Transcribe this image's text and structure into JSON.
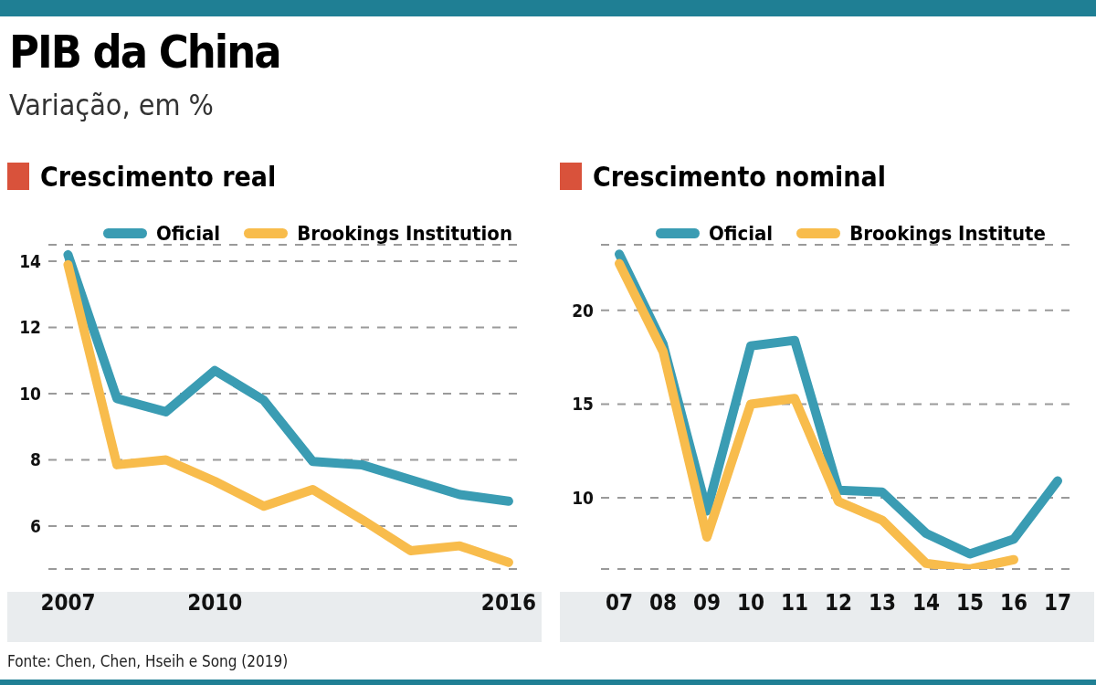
{
  "chart_data": [
    {
      "type": "other",
      "title": "PIB da China",
      "subtitle": "Variação, em %",
      "annotations": [
        "Fonte: Chen, Chen, Hseih e Song (2019)"
      ]
    },
    {
      "type": "line",
      "title": "Crescimento real",
      "x": [
        2007,
        2008,
        2009,
        2010,
        2011,
        2012,
        2013,
        2014,
        2015,
        2016
      ],
      "xlim": [
        2006.6,
        2016.3
      ],
      "xticks": [
        2007,
        2010,
        2016
      ],
      "ylim": [
        4.7,
        14.5
      ],
      "yticks": [
        {
          "value": 4.7,
          "label": null
        },
        6,
        8,
        10,
        12,
        14
      ],
      "grid": "y",
      "legend": "top",
      "marker": "none",
      "line_style": "solid",
      "series": [
        {
          "name": "Oficial",
          "color": "#3a9cb3",
          "values": [
            14.2,
            9.85,
            9.45,
            10.7,
            9.8,
            7.95,
            7.85,
            7.4,
            6.95,
            6.75
          ]
        },
        {
          "name": "Brookings Institution",
          "color": "#f8bc4c",
          "values": [
            13.9,
            7.85,
            8.0,
            7.35,
            6.6,
            7.1,
            6.2,
            5.25,
            5.4,
            4.9
          ]
        }
      ]
    },
    {
      "type": "line",
      "title": "Crescimento nominal",
      "categories": [
        "07",
        "08",
        "09",
        "10",
        "11",
        "12",
        "13",
        "14",
        "15",
        "16",
        "17"
      ],
      "ylim": [
        6.2,
        23.5
      ],
      "yticks": [
        {
          "value": 6.2,
          "label": null
        },
        10,
        15,
        20
      ],
      "grid": "y",
      "legend": "top",
      "marker": "none",
      "line_style": "solid",
      "series": [
        {
          "name": "Oficial",
          "color": "#3a9cb3",
          "values": [
            23.0,
            18.2,
            9.3,
            18.1,
            18.4,
            10.4,
            10.3,
            8.1,
            7.0,
            7.8,
            10.9
          ]
        },
        {
          "name": "Brookings Institute",
          "color": "#f8bc4c",
          "values": [
            22.5,
            17.8,
            7.9,
            15.0,
            15.3,
            9.8,
            8.8,
            6.5,
            6.2,
            6.7,
            null
          ]
        }
      ]
    }
  ]
}
